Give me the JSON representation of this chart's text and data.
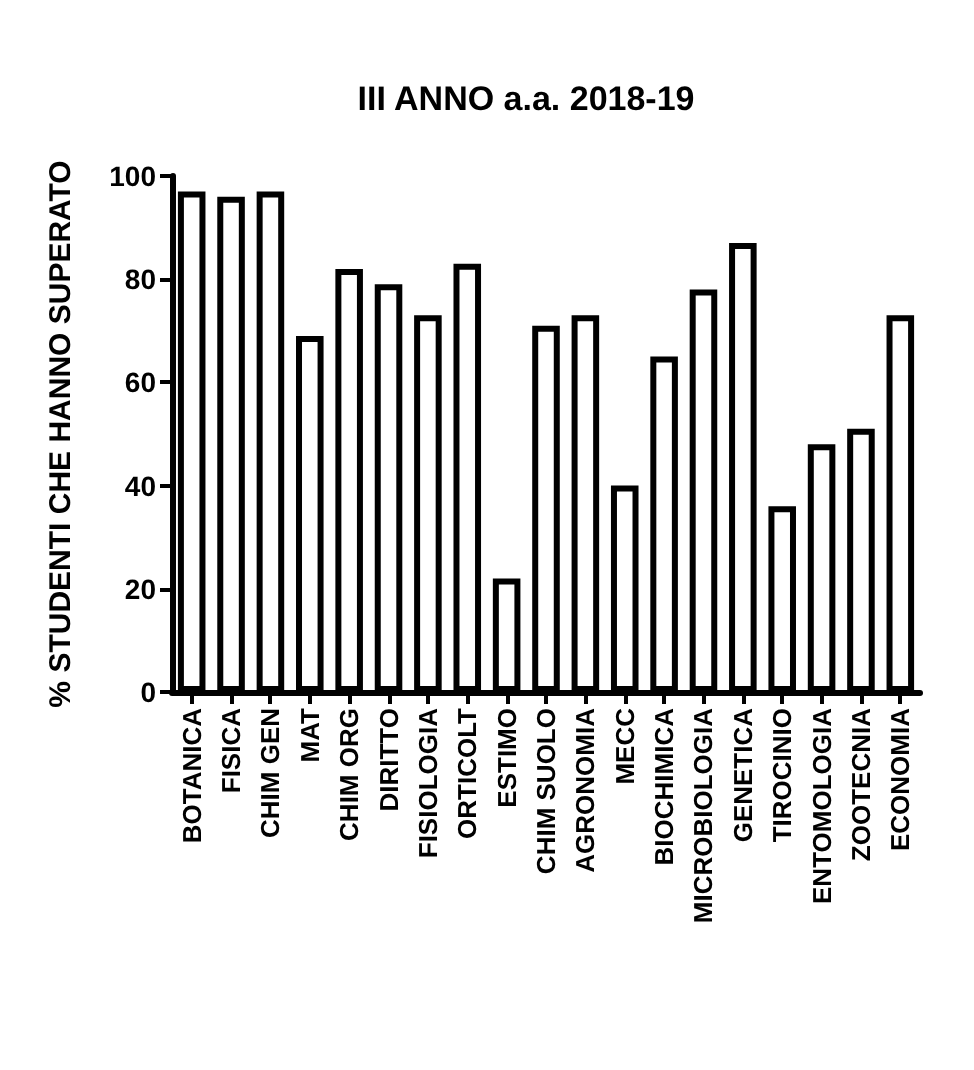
{
  "chart_data": {
    "type": "bar",
    "title": "III ANNO a.a. 2018-19",
    "ylabel": "% STUDENTI CHE HANNO SUPERATO",
    "categories": [
      "BOTANICA",
      "FISICA",
      "CHIM GEN",
      "MAT",
      "CHIM ORG",
      "DIRITTO",
      "FISIOLOGIA",
      "ORTICOLT",
      "ESTIMO",
      "CHIM SUOLO",
      "AGRONOMIA",
      "MECC",
      "BIOCHIMICA",
      "MICROBIOLOGIA",
      "GENETICA",
      "TIROCINIO",
      "ENTOMOLOGIA",
      "ZOOTECNIA",
      "ECONOMIA"
    ],
    "values": [
      97,
      96,
      97,
      69,
      82,
      79,
      73,
      83,
      22,
      71,
      73,
      40,
      65,
      78,
      87,
      36,
      48,
      51,
      73
    ],
    "color": "#ffffff",
    "ylim": [
      0,
      100
    ],
    "yticks": [
      0,
      20,
      40,
      60,
      80,
      100
    ],
    "grid": false
  }
}
